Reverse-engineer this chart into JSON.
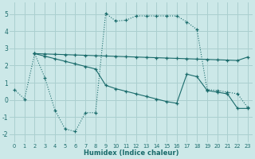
{
  "xlabel": "Humidex (Indice chaleur)",
  "ylabel": "",
  "xlim": [
    -0.5,
    23.5
  ],
  "ylim": [
    -2.5,
    5.7
  ],
  "xticks": [
    0,
    1,
    2,
    3,
    4,
    5,
    6,
    7,
    8,
    9,
    10,
    11,
    12,
    13,
    14,
    15,
    16,
    17,
    18,
    19,
    20,
    21,
    22,
    23
  ],
  "yticks": [
    -2,
    -1,
    0,
    1,
    2,
    3,
    4,
    5
  ],
  "background_color": "#cce8e8",
  "grid_color": "#aacfcf",
  "line_color": "#1a6b6b",
  "line1_x": [
    0,
    1,
    2,
    3,
    4,
    5,
    6,
    7,
    8,
    9,
    10,
    11,
    12,
    13,
    14,
    15,
    16,
    17,
    18,
    19,
    20,
    21,
    22,
    23
  ],
  "line1_y": [
    0.6,
    0.05,
    2.7,
    1.3,
    -0.6,
    -1.7,
    -1.85,
    -0.75,
    -0.75,
    5.05,
    4.6,
    4.65,
    4.9,
    4.9,
    4.9,
    4.9,
    4.9,
    4.55,
    4.1,
    0.6,
    0.55,
    0.45,
    0.35,
    -0.45
  ],
  "line2_x": [
    2,
    3,
    4,
    5,
    6,
    7,
    8,
    9,
    10,
    11,
    12,
    13,
    14,
    15,
    16,
    17,
    18,
    19,
    20,
    21,
    22,
    23
  ],
  "line2_y": [
    2.7,
    2.68,
    2.66,
    2.64,
    2.62,
    2.6,
    2.58,
    2.56,
    2.54,
    2.52,
    2.5,
    2.48,
    2.46,
    2.44,
    2.42,
    2.4,
    2.38,
    2.36,
    2.34,
    2.32,
    2.3,
    2.5
  ],
  "line3_x": [
    2,
    3,
    4,
    5,
    6,
    7,
    8,
    9,
    10,
    11,
    12,
    13,
    14,
    15,
    16,
    17,
    18,
    19,
    20,
    21,
    22,
    23
  ],
  "line3_y": [
    2.7,
    2.55,
    2.4,
    2.25,
    2.1,
    1.95,
    1.8,
    0.85,
    0.65,
    0.5,
    0.35,
    0.2,
    0.05,
    -0.1,
    -0.2,
    1.5,
    1.35,
    0.55,
    0.45,
    0.35,
    -0.5,
    -0.5
  ]
}
